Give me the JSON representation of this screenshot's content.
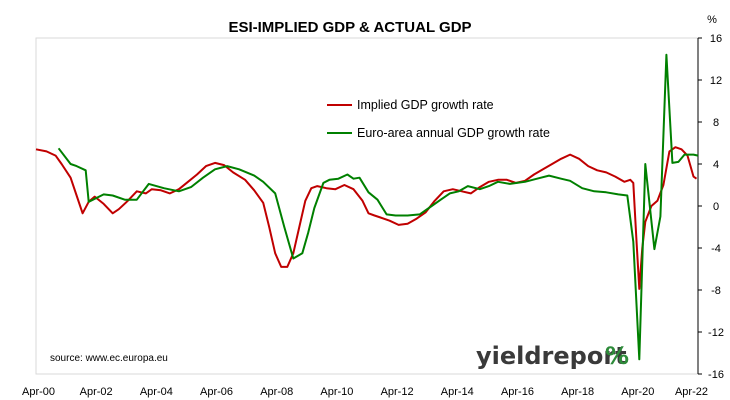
{
  "chart_data": {
    "type": "line",
    "title": "ESI-IMPLIED GDP & ACTUAL GDP",
    "y_unit_label": "%",
    "ylim": [
      -16,
      16
    ],
    "y_ticks": [
      "16",
      "12",
      "8",
      "4",
      "0",
      "-4",
      "-8",
      "-12",
      "-16"
    ],
    "x_ticks": [
      "Apr-00",
      "Apr-02",
      "Apr-04",
      "Apr-06",
      "Apr-08",
      "Apr-10",
      "Apr-12",
      "Apr-14",
      "Apr-16",
      "Apr-18",
      "Apr-20",
      "Apr-22"
    ],
    "xlim": [
      2000.25,
      2022.25
    ],
    "grid": false,
    "legend_position": "upper-center",
    "series": [
      {
        "name": "Implied GDP growth rate",
        "color": "#c00000",
        "x": [
          2000.25,
          2000.6,
          2000.9,
          2001.1,
          2001.4,
          2001.6,
          2001.8,
          2002.0,
          2002.2,
          2002.5,
          2002.8,
          2003.0,
          2003.3,
          2003.6,
          2003.9,
          2004.1,
          2004.4,
          2004.7,
          2005.0,
          2005.3,
          2005.6,
          2005.9,
          2006.2,
          2006.5,
          2006.8,
          2007.2,
          2007.5,
          2007.8,
          2008.0,
          2008.2,
          2008.4,
          2008.6,
          2008.8,
          2009.0,
          2009.2,
          2009.4,
          2009.6,
          2009.9,
          2010.2,
          2010.5,
          2010.8,
          2011.1,
          2011.3,
          2011.5,
          2011.7,
          2012.0,
          2012.3,
          2012.6,
          2012.9,
          2013.2,
          2013.5,
          2013.8,
          2014.1,
          2014.4,
          2014.7,
          2015.0,
          2015.3,
          2015.6,
          2015.9,
          2016.2,
          2016.5,
          2016.8,
          2017.1,
          2017.4,
          2017.7,
          2018.0,
          2018.3,
          2018.6,
          2018.9,
          2019.2,
          2019.5,
          2019.8,
          2020.0,
          2020.1,
          2020.2,
          2020.3,
          2020.4,
          2020.5,
          2020.7,
          2020.9,
          2021.1,
          2021.3,
          2021.5,
          2021.7,
          2021.9,
          2022.0,
          2022.1,
          2022.2
        ],
        "y": [
          5.4,
          5.2,
          4.8,
          4.0,
          2.7,
          1.0,
          -0.7,
          0.4,
          0.9,
          0.2,
          -0.7,
          -0.3,
          0.5,
          1.4,
          1.2,
          1.6,
          1.5,
          1.2,
          1.6,
          2.3,
          3.0,
          3.8,
          4.1,
          3.9,
          3.2,
          2.5,
          1.5,
          0.3,
          -2.0,
          -4.5,
          -5.8,
          -5.8,
          -4.5,
          -2.0,
          0.5,
          1.7,
          1.9,
          1.7,
          1.6,
          2.0,
          1.6,
          0.5,
          -0.7,
          -0.9,
          -1.1,
          -1.4,
          -1.8,
          -1.7,
          -1.2,
          -0.6,
          0.5,
          1.4,
          1.6,
          1.4,
          1.2,
          1.8,
          2.3,
          2.5,
          2.5,
          2.2,
          2.4,
          3.0,
          3.5,
          4.0,
          4.5,
          4.9,
          4.5,
          3.8,
          3.4,
          3.2,
          2.8,
          2.3,
          2.5,
          2.2,
          -3.0,
          -7.9,
          -4.0,
          -1.5,
          0.0,
          0.5,
          2.0,
          5.2,
          5.6,
          5.4,
          4.8,
          3.8,
          2.8,
          2.6
        ]
      },
      {
        "name": "Euro-area annual GDP growth rate",
        "color": "#008000",
        "x": [
          2001.0,
          2001.4,
          2001.6,
          2001.9,
          2002.0,
          2002.5,
          2002.8,
          2003.2,
          2003.6,
          2004.0,
          2004.5,
          2005.0,
          2005.4,
          2005.8,
          2006.2,
          2006.6,
          2007.0,
          2007.5,
          2007.8,
          2008.2,
          2008.5,
          2008.8,
          2009.1,
          2009.3,
          2009.5,
          2009.8,
          2010.0,
          2010.3,
          2010.6,
          2010.8,
          2011.0,
          2011.3,
          2011.6,
          2011.9,
          2012.2,
          2012.6,
          2013.0,
          2013.4,
          2013.7,
          2014.0,
          2014.3,
          2014.6,
          2015.0,
          2015.3,
          2015.6,
          2016.0,
          2016.5,
          2016.9,
          2017.3,
          2017.7,
          2018.0,
          2018.4,
          2018.8,
          2019.2,
          2019.6,
          2019.9,
          2020.1,
          2020.3,
          2020.5,
          2020.8,
          2021.0,
          2021.2,
          2021.4,
          2021.6,
          2021.8,
          2022.1,
          2022.25
        ],
        "y": [
          5.5,
          4.0,
          3.8,
          3.4,
          0.4,
          1.1,
          1.0,
          0.6,
          0.6,
          2.1,
          1.7,
          1.4,
          1.8,
          2.7,
          3.5,
          3.8,
          3.5,
          2.9,
          2.3,
          1.2,
          -2.0,
          -5.0,
          -4.5,
          -2.5,
          -0.2,
          2.2,
          2.5,
          2.6,
          3.0,
          2.6,
          2.7,
          1.3,
          0.6,
          -0.8,
          -0.9,
          -0.9,
          -0.8,
          0.0,
          0.6,
          1.2,
          1.4,
          1.9,
          1.6,
          1.9,
          2.3,
          2.1,
          2.3,
          2.6,
          2.9,
          2.6,
          2.4,
          1.7,
          1.4,
          1.3,
          1.1,
          1.0,
          -3.4,
          -14.6,
          4.0,
          -4.1,
          -1.0,
          14.4,
          4.1,
          4.2,
          4.9,
          4.9,
          4.8
        ]
      }
    ],
    "source_note": "source: www.ec.europa.eu"
  },
  "logo": {
    "word": "yieldreport",
    "mark": "%",
    "mark_color": "#2e8b3a",
    "mark_accent": "#d32f2f"
  }
}
